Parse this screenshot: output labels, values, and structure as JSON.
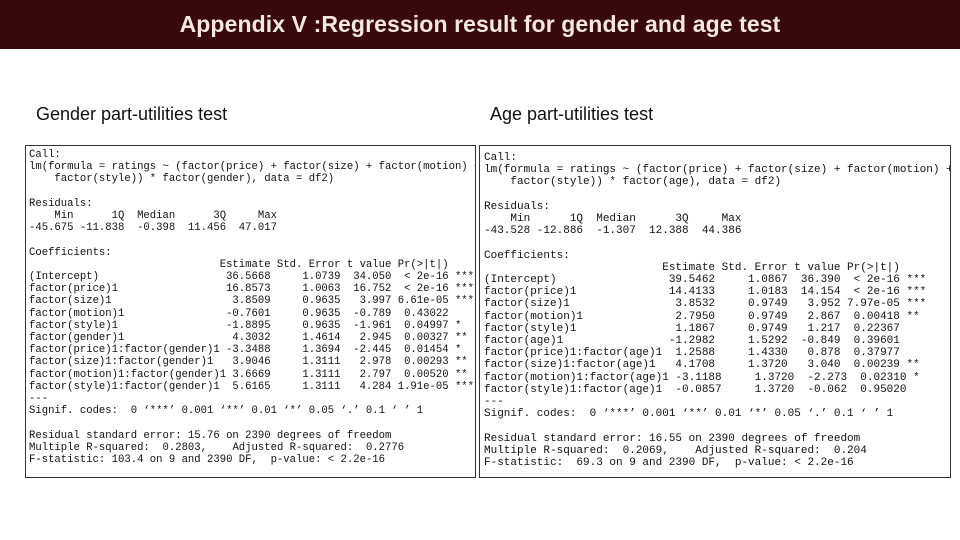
{
  "title": "Appendix V :Regression result for gender and age test",
  "gender": {
    "heading": "Gender part-utilities test",
    "lines": [
      "Call:",
      "lm(formula = ratings ~ (factor(price) + factor(size) + factor(motion) +",
      "    factor(style)) * factor(gender), data = df2)",
      "",
      "Residuals:",
      "    Min      1Q  Median      3Q     Max ",
      "-45.675 -11.838  -0.398  11.456  47.017 ",
      "",
      "Coefficients:",
      "                              Estimate Std. Error t value Pr(>|t|)    ",
      "(Intercept)                    36.5668     1.0739  34.050  < 2e-16 ***",
      "factor(price)1                 16.8573     1.0063  16.752  < 2e-16 ***",
      "factor(size)1                   3.8509     0.9635   3.997 6.61e-05 ***",
      "factor(motion)1                -0.7601     0.9635  -0.789  0.43022    ",
      "factor(style)1                 -1.8895     0.9635  -1.961  0.04997 *  ",
      "factor(gender)1                 4.3032     1.4614   2.945  0.00327 ** ",
      "factor(price)1:factor(gender)1 -3.3488     1.3694  -2.445  0.01454 *  ",
      "factor(size)1:factor(gender)1   3.9046     1.3111   2.978  0.00293 ** ",
      "factor(motion)1:factor(gender)1 3.6669     1.3111   2.797  0.00520 ** ",
      "factor(style)1:factor(gender)1  5.6165     1.3111   4.284 1.91e-05 ***",
      "---",
      "Signif. codes:  0 ‘***’ 0.001 ‘**’ 0.01 ‘*’ 0.05 ‘.’ 0.1 ‘ ’ 1",
      "",
      "Residual standard error: 15.76 on 2390 degrees of freedom",
      "Multiple R-squared:  0.2803,\tAdjusted R-squared:  0.2776 ",
      "F-statistic: 103.4 on 9 and 2390 DF,  p-value: < 2.2e-16"
    ]
  },
  "age": {
    "heading": "Age part-utilities test",
    "lines": [
      "Call:",
      "lm(formula = ratings ~ (factor(price) + factor(size) + factor(motion) +",
      "    factor(style)) * factor(age), data = df2)",
      "",
      "Residuals:",
      "    Min      1Q  Median      3Q     Max ",
      "-43.528 -12.886  -1.307  12.388  44.386 ",
      "",
      "Coefficients:",
      "                           Estimate Std. Error t value Pr(>|t|)    ",
      "(Intercept)                 39.5462     1.0867  36.390  < 2e-16 ***",
      "factor(price)1              14.4133     1.0183  14.154  < 2e-16 ***",
      "factor(size)1                3.8532     0.9749   3.952 7.97e-05 ***",
      "factor(motion)1              2.7950     0.9749   2.867  0.00418 ** ",
      "factor(style)1               1.1867     0.9749   1.217  0.22367    ",
      "factor(age)1                -1.2982     1.5292  -0.849  0.39601    ",
      "factor(price)1:factor(age)1  1.2588     1.4330   0.878  0.37977    ",
      "factor(size)1:factor(age)1   4.1708     1.3720   3.040  0.00239 ** ",
      "factor(motion)1:factor(age)1 -3.1188     1.3720  -2.273  0.02310 *  ",
      "factor(style)1:factor(age)1  -0.0857     1.3720  -0.062  0.95020    ",
      "---",
      "Signif. codes:  0 ‘***’ 0.001 ‘**’ 0.01 ‘*’ 0.05 ‘.’ 0.1 ‘ ’ 1",
      "",
      "Residual standard error: 16.55 on 2390 degrees of freedom",
      "Multiple R-squared:  0.2069,\tAdjusted R-squared:  0.204 ",
      "F-statistic:  69.3 on 9 and 2390 DF,  p-value: < 2.2e-16"
    ]
  }
}
